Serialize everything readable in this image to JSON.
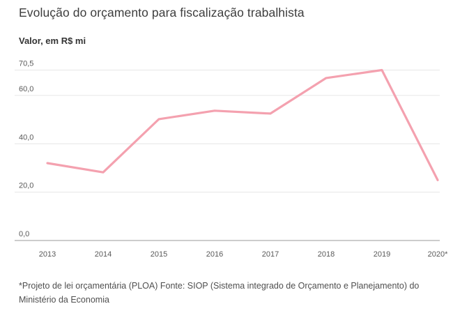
{
  "header": {
    "title": "Evolução do orçamento para fiscalização trabalhista",
    "subtitle": "Valor, em R$ mi"
  },
  "chart_data": {
    "type": "line",
    "title": "Evolução do orçamento para fiscalização trabalhista",
    "ylabel": "Valor, em R$ mi",
    "xlabel": "",
    "categories": [
      "2013",
      "2014",
      "2015",
      "2016",
      "2017",
      "2018",
      "2019",
      "2020*"
    ],
    "values": [
      32.0,
      28.2,
      50.2,
      53.7,
      52.5,
      67.2,
      70.5,
      25.0
    ],
    "ylim": [
      0,
      70.5
    ],
    "y_ticks": [
      0,
      20,
      40,
      60,
      70.5
    ],
    "y_tick_labels": [
      "0,0",
      "20,0",
      "40,0",
      "60,0",
      "70,5"
    ],
    "grid": true,
    "legend": "none",
    "markers": "none",
    "colors": {
      "line": "#f4a1af",
      "gridline": "#e6e6e6",
      "axis": "#999999",
      "tick_label": "#595959"
    }
  },
  "footer": {
    "note": "*Projeto de lei orçamentária (PLOA) Fonte: SIOP (Sistema integrado de Orçamento e Planejamento) do Ministério da Economia"
  }
}
